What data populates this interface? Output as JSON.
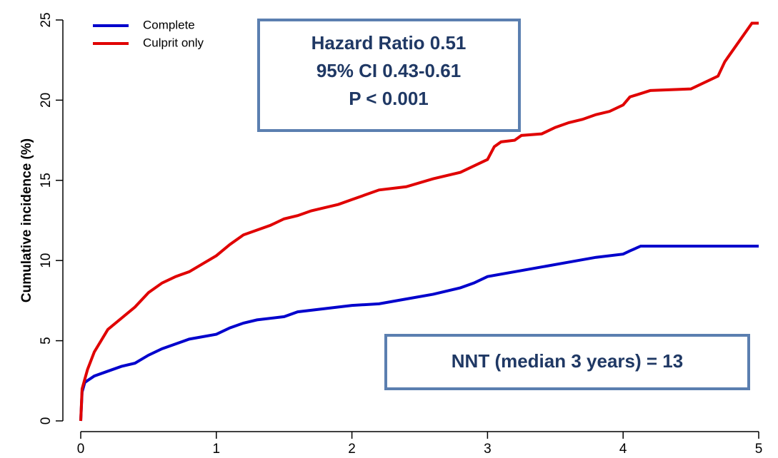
{
  "chart_data": {
    "type": "line",
    "y_label": "Cumulative incidence (%)",
    "xlim": [
      0,
      5
    ],
    "xticks": [
      0,
      1,
      2,
      3,
      4,
      5
    ],
    "ylim": [
      0,
      25
    ],
    "yticks": [
      0,
      5,
      10,
      15,
      20,
      25
    ],
    "legend": "top-left",
    "series": [
      {
        "name": "Complete",
        "color": "#0000cc",
        "x": [
          0,
          0.01,
          0.03,
          0.1,
          0.2,
          0.3,
          0.4,
          0.5,
          0.6,
          0.7,
          0.8,
          1.0,
          1.1,
          1.2,
          1.3,
          1.5,
          1.6,
          1.8,
          2.0,
          2.2,
          2.4,
          2.6,
          2.8,
          2.9,
          3.0,
          3.2,
          3.4,
          3.6,
          3.8,
          4.0,
          4.05,
          4.13,
          5.0
        ],
        "values": [
          0,
          1.8,
          2.4,
          2.8,
          3.1,
          3.4,
          3.6,
          4.1,
          4.5,
          4.8,
          5.1,
          5.4,
          5.8,
          6.1,
          6.3,
          6.5,
          6.8,
          7.0,
          7.2,
          7.3,
          7.6,
          7.9,
          8.3,
          8.6,
          9.0,
          9.3,
          9.6,
          9.9,
          10.2,
          10.4,
          10.6,
          10.9,
          10.9
        ]
      },
      {
        "name": "Culprit only",
        "color": "#e00000",
        "x": [
          0,
          0.01,
          0.05,
          0.1,
          0.15,
          0.2,
          0.3,
          0.4,
          0.5,
          0.6,
          0.7,
          0.8,
          0.9,
          1.0,
          1.1,
          1.2,
          1.3,
          1.4,
          1.5,
          1.6,
          1.7,
          1.8,
          1.9,
          2.0,
          2.1,
          2.2,
          2.4,
          2.6,
          2.8,
          2.9,
          3.0,
          3.05,
          3.1,
          3.2,
          3.25,
          3.4,
          3.5,
          3.6,
          3.7,
          3.8,
          3.9,
          4.0,
          4.05,
          4.2,
          4.5,
          4.7,
          4.75,
          4.95,
          5.0
        ],
        "values": [
          0,
          2,
          3.2,
          4.3,
          5,
          5.7,
          6.4,
          7.1,
          8,
          8.6,
          9,
          9.3,
          9.8,
          10.3,
          11,
          11.6,
          11.9,
          12.2,
          12.6,
          12.8,
          13.1,
          13.3,
          13.5,
          13.8,
          14.1,
          14.4,
          14.6,
          15.1,
          15.5,
          15.9,
          16.3,
          17.1,
          17.4,
          17.5,
          17.8,
          17.9,
          18.3,
          18.6,
          18.8,
          19.1,
          19.3,
          19.7,
          20.2,
          20.6,
          20.7,
          21.5,
          22.4,
          24.8,
          24.8
        ]
      }
    ],
    "annotations": [
      [
        "Hazard Ratio 0.51",
        "95% CI 0.43-0.61",
        "P < 0.001"
      ],
      [
        "NNT (median 3 years) = 13"
      ]
    ]
  }
}
